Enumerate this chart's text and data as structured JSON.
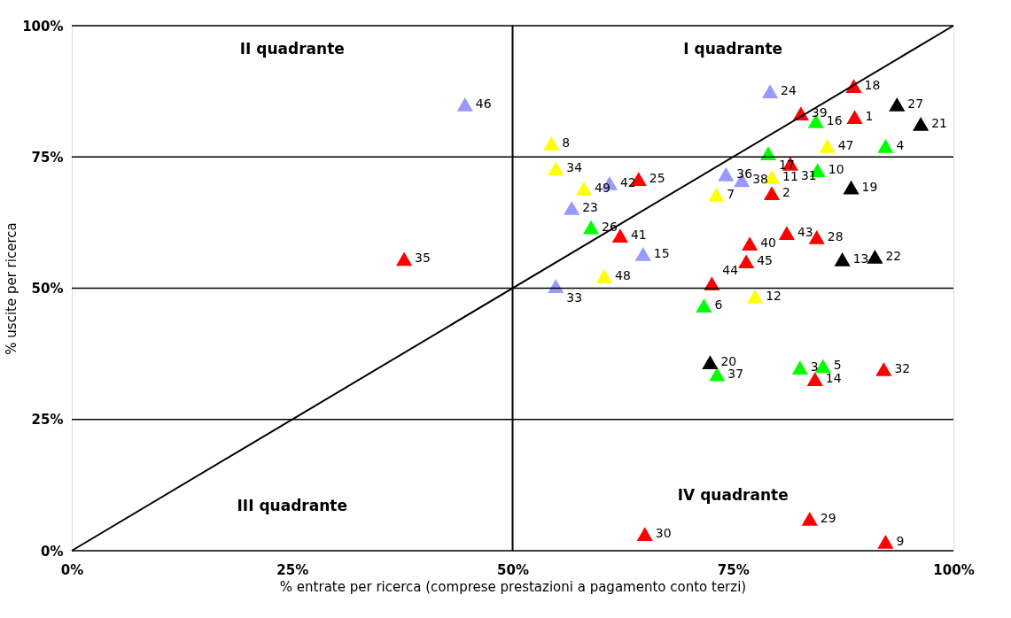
{
  "chart_data": {
    "type": "scatter",
    "xlabel": "% entrate per ricerca (comprese prestazioni a pagamento conto terzi)",
    "ylabel": "% uscite per ricerca",
    "xlim": [
      0,
      100
    ],
    "ylim": [
      0,
      100
    ],
    "xticks": [
      {
        "value": 0,
        "label": "0%"
      },
      {
        "value": 25,
        "label": "25%"
      },
      {
        "value": 50,
        "label": "50%"
      },
      {
        "value": 75,
        "label": "75%"
      },
      {
        "value": 100,
        "label": "100%"
      }
    ],
    "yticks": [
      {
        "value": 0,
        "label": "0%"
      },
      {
        "value": 25,
        "label": "25%"
      },
      {
        "value": 50,
        "label": "50%"
      },
      {
        "value": 75,
        "label": "75%"
      },
      {
        "value": 100,
        "label": "100%"
      }
    ],
    "grid": "y",
    "marker": "triangle",
    "ref_lines": [
      {
        "axis": "x",
        "value": 50,
        "color": "#000000"
      }
    ],
    "series": [
      {
        "color": "#ff0000",
        "x": [
          88.8,
          79.4,
          92.3,
          84.3,
          88.7,
          64.3,
          84.5,
          83.7,
          65.0,
          81.5,
          92.1,
          37.7,
          82.7,
          76.9,
          62.2,
          81.1,
          72.6,
          76.5
        ],
        "values": [
          82.6,
          68.1,
          1.7,
          32.7,
          88.5,
          70.8,
          59.7,
          6.1,
          3.2,
          73.7,
          34.6,
          55.6,
          83.3,
          58.5,
          60.0,
          60.5,
          50.9,
          55.1
        ]
      },
      {
        "color": "#00ff00",
        "x": [
          82.6,
          92.3,
          85.2,
          71.7,
          84.6,
          84.4,
          79.0,
          58.9,
          73.2
        ],
        "values": [
          34.9,
          77.1,
          35.2,
          46.7,
          72.5,
          81.8,
          75.7,
          61.6,
          33.6
        ]
      },
      {
        "color": "#ffff00",
        "x": [
          73.1,
          54.4,
          79.4,
          77.5,
          54.9,
          85.7,
          60.4,
          58.1
        ],
        "values": [
          67.8,
          77.6,
          71.2,
          48.4,
          72.8,
          77.1,
          52.3,
          69.0
        ]
      },
      {
        "color": "#9999ff",
        "x": [
          64.8,
          56.7,
          79.2,
          54.9,
          74.2,
          76.0,
          61.0,
          44.6
        ],
        "values": [
          56.5,
          65.3,
          87.5,
          50.4,
          71.7,
          70.6,
          70.0,
          85.0
        ]
      },
      {
        "color": "#000000",
        "x": [
          87.4,
          88.4,
          72.4,
          96.3,
          91.1,
          93.6
        ],
        "values": [
          55.5,
          69.2,
          35.9,
          81.3,
          56.0,
          85.0
        ]
      },
      {
        "type": "line",
        "color": "#000000",
        "x": [
          0,
          100
        ],
        "values": [
          0,
          100
        ],
        "marker": "none"
      }
    ],
    "annotations": [
      "II quadrante",
      "I quadrante",
      "III quadrante",
      "IV quadrante",
      {
        "text": "1",
        "x": 88.8,
        "y": 82.6
      },
      {
        "text": "2",
        "x": 79.4,
        "y": 68.1
      },
      {
        "text": "9",
        "x": 92.3,
        "y": 1.7
      },
      {
        "text": "14",
        "x": 84.3,
        "y": 32.7
      },
      {
        "text": "18",
        "x": 88.7,
        "y": 88.5
      },
      {
        "text": "25",
        "x": 64.3,
        "y": 70.8
      },
      {
        "text": "28",
        "x": 84.5,
        "y": 59.7
      },
      {
        "text": "29",
        "x": 83.7,
        "y": 6.1
      },
      {
        "text": "30",
        "x": 65.0,
        "y": 3.2
      },
      {
        "text": "31",
        "x": 81.5,
        "y": 73.7
      },
      {
        "text": "32",
        "x": 92.1,
        "y": 34.6
      },
      {
        "text": "35",
        "x": 37.7,
        "y": 55.6
      },
      {
        "text": "39",
        "x": 82.7,
        "y": 83.3
      },
      {
        "text": "40",
        "x": 76.9,
        "y": 58.5
      },
      {
        "text": "41",
        "x": 62.2,
        "y": 60.0
      },
      {
        "text": "43",
        "x": 81.1,
        "y": 60.5
      },
      {
        "text": "44",
        "x": 72.6,
        "y": 50.9
      },
      {
        "text": "45",
        "x": 76.5,
        "y": 55.1
      },
      {
        "text": "3",
        "x": 82.6,
        "y": 34.9
      },
      {
        "text": "4",
        "x": 92.3,
        "y": 77.1
      },
      {
        "text": "5",
        "x": 85.2,
        "y": 35.2
      },
      {
        "text": "6",
        "x": 71.7,
        "y": 46.7
      },
      {
        "text": "10",
        "x": 84.6,
        "y": 72.5
      },
      {
        "text": "16",
        "x": 84.4,
        "y": 81.8
      },
      {
        "text": "17",
        "x": 79.0,
        "y": 75.7
      },
      {
        "text": "26",
        "x": 58.9,
        "y": 61.6
      },
      {
        "text": "37",
        "x": 73.2,
        "y": 33.6
      },
      {
        "text": "7",
        "x": 73.1,
        "y": 67.8
      },
      {
        "text": "8",
        "x": 54.4,
        "y": 77.6
      },
      {
        "text": "11",
        "x": 79.4,
        "y": 71.2
      },
      {
        "text": "12",
        "x": 77.5,
        "y": 48.4
      },
      {
        "text": "34",
        "x": 54.9,
        "y": 72.8
      },
      {
        "text": "47",
        "x": 85.7,
        "y": 77.1
      },
      {
        "text": "48",
        "x": 60.4,
        "y": 52.3
      },
      {
        "text": "49",
        "x": 58.1,
        "y": 69.0
      },
      {
        "text": "15",
        "x": 64.8,
        "y": 56.5
      },
      {
        "text": "23",
        "x": 56.7,
        "y": 65.3
      },
      {
        "text": "24",
        "x": 79.2,
        "y": 87.5
      },
      {
        "text": "33",
        "x": 54.9,
        "y": 50.4
      },
      {
        "text": "36",
        "x": 74.2,
        "y": 71.7
      },
      {
        "text": "38",
        "x": 76.0,
        "y": 70.6
      },
      {
        "text": "42",
        "x": 61.0,
        "y": 70.0
      },
      {
        "text": "46",
        "x": 44.6,
        "y": 85.0
      },
      {
        "text": "13",
        "x": 87.4,
        "y": 55.5
      },
      {
        "text": "19",
        "x": 88.4,
        "y": 69.2
      },
      {
        "text": "20",
        "x": 72.4,
        "y": 35.9
      },
      {
        "text": "21",
        "x": 96.3,
        "y": 81.3
      },
      {
        "text": "22",
        "x": 91.1,
        "y": 56.0
      },
      {
        "text": "27",
        "x": 93.6,
        "y": 85.0
      }
    ]
  }
}
